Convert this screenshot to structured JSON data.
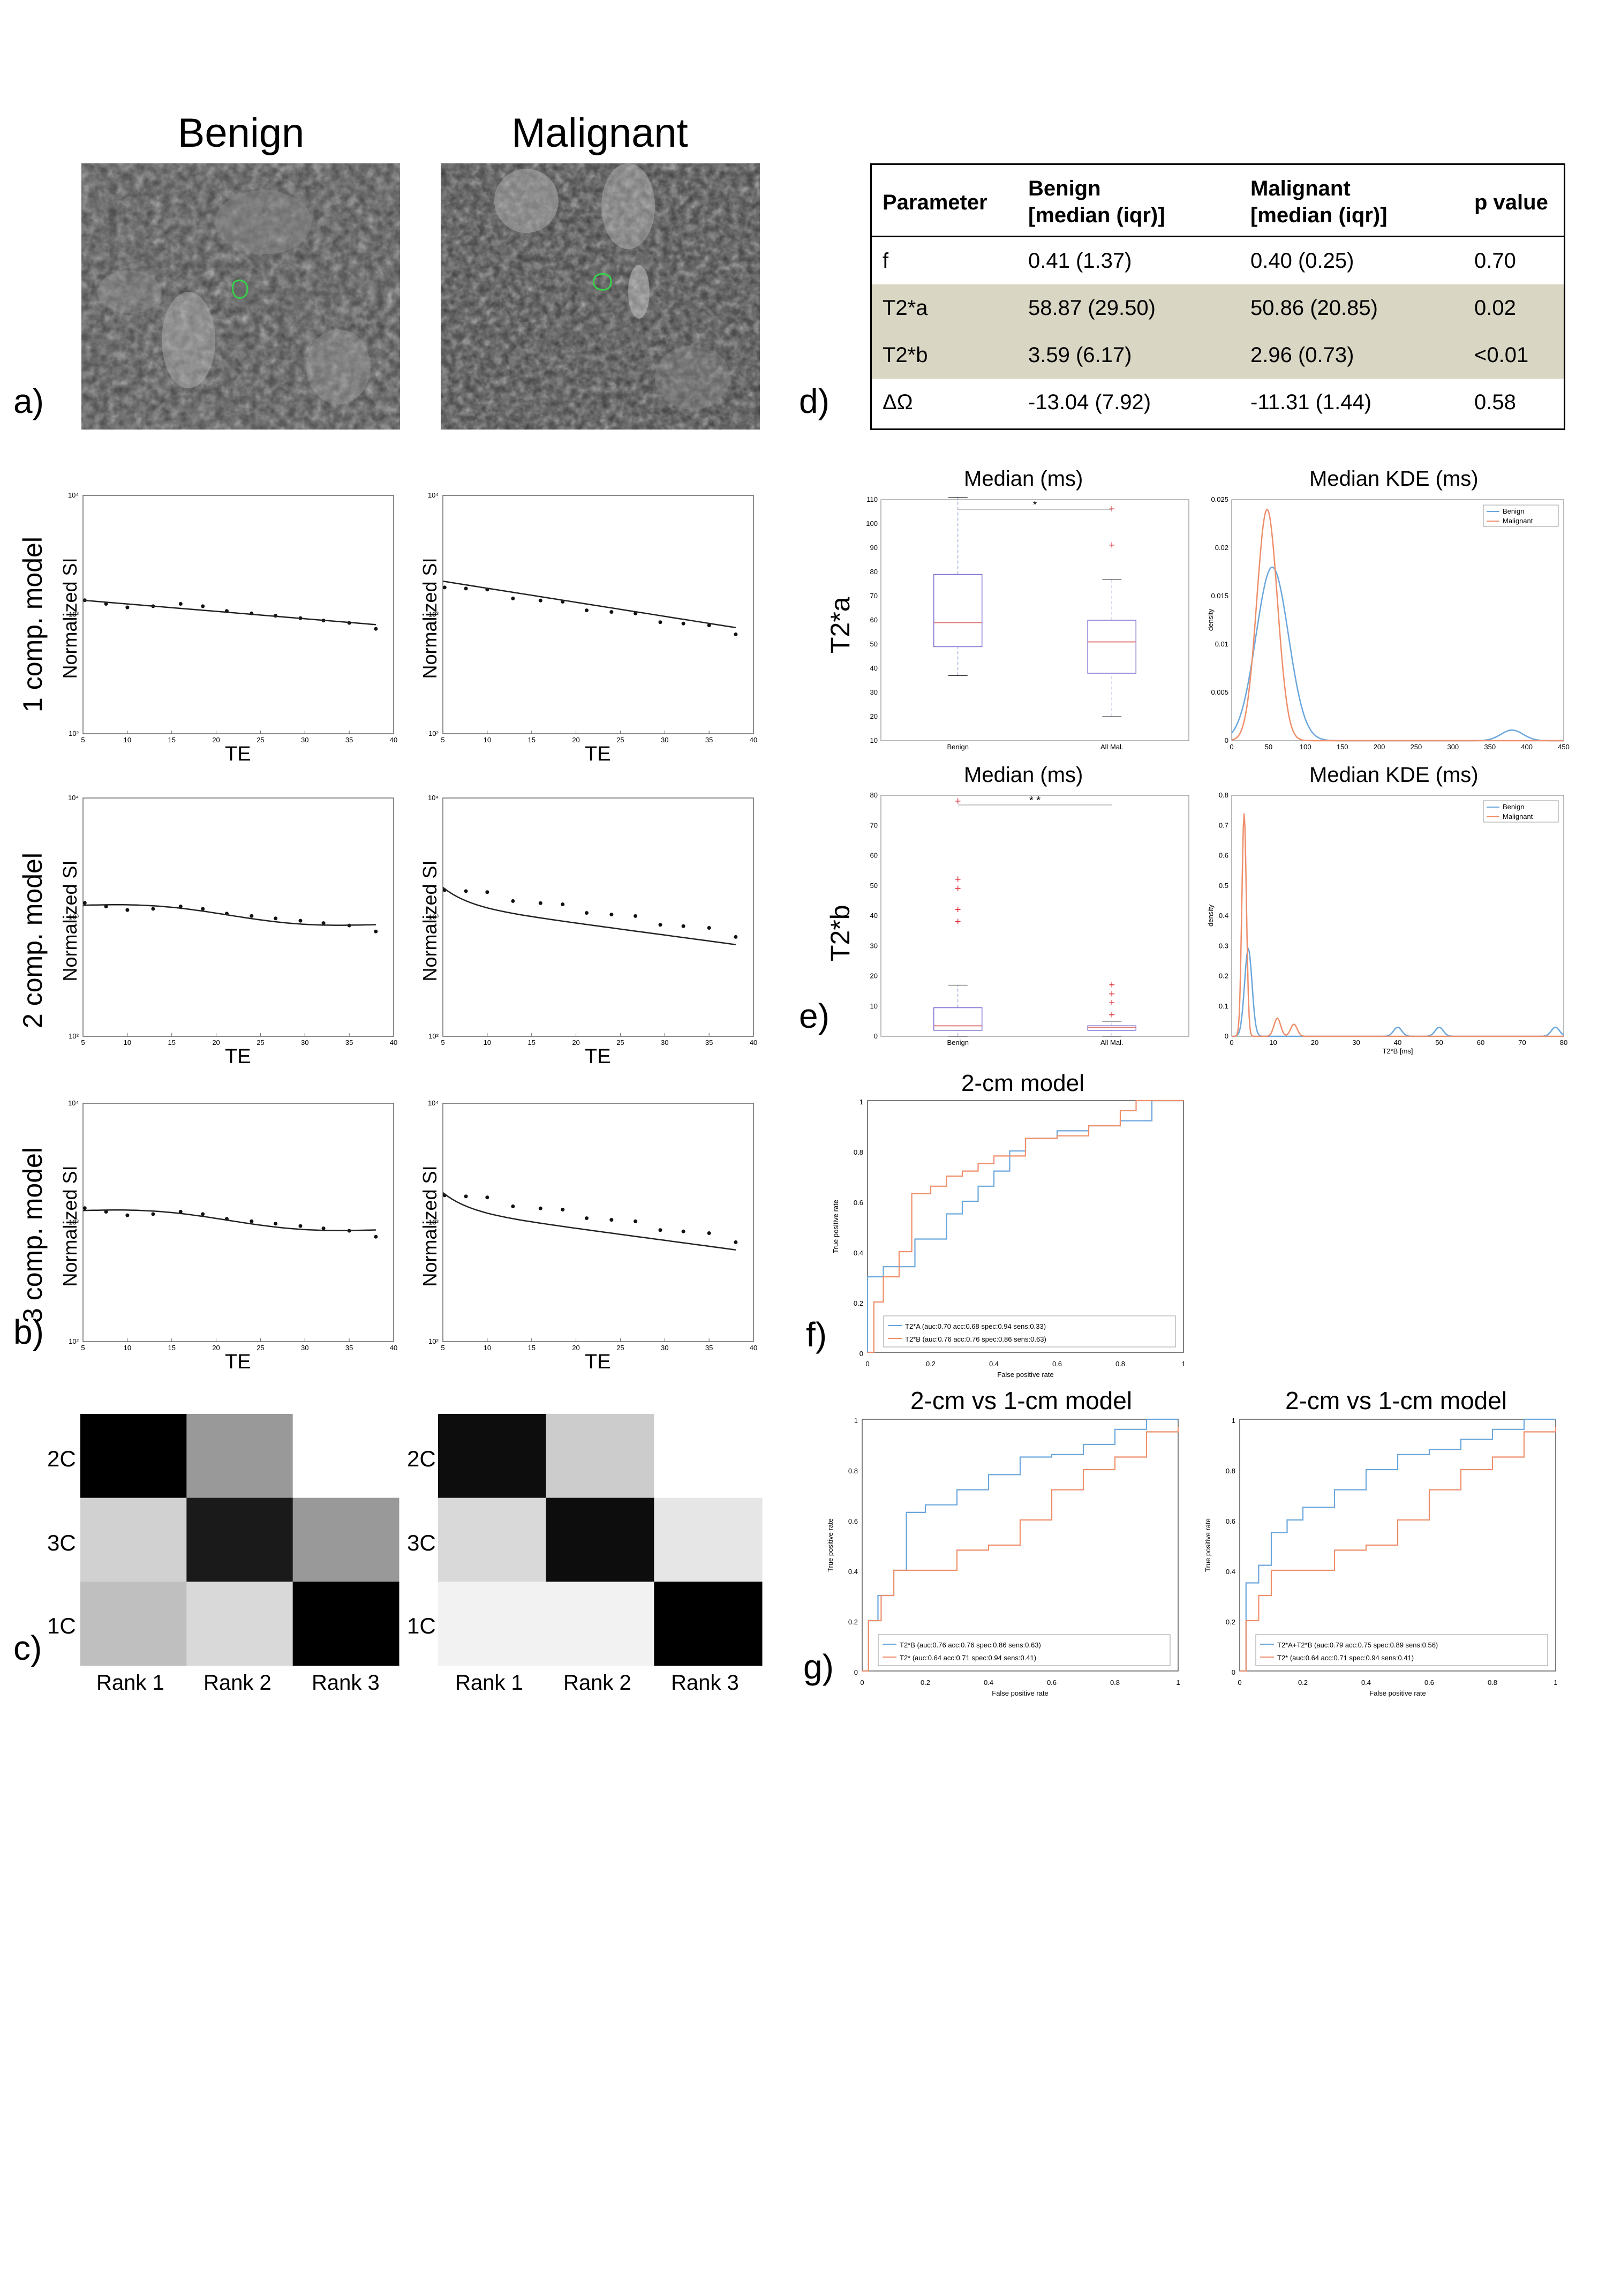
{
  "panel_a": {
    "letter": "a)",
    "headers": [
      "Benign",
      "Malignant"
    ]
  },
  "panel_b": {
    "letter": "b)",
    "row_labels": [
      "1 comp. model",
      "2 comp. model",
      "3 comp. model"
    ],
    "ylabel": "Normalized SI",
    "xlabel": "TE",
    "x_ticks": [
      "5",
      "10",
      "15",
      "20",
      "25",
      "30",
      "35",
      "40"
    ],
    "y_ticks": [
      "10²",
      "10³",
      "10⁴"
    ]
  },
  "panel_c": {
    "letter": "c)",
    "row_labels": [
      "2C",
      "3C",
      "1C"
    ],
    "col_labels": [
      "Rank 1",
      "Rank 2",
      "Rank 3"
    ],
    "left_grey": [
      [
        0.0,
        0.6,
        1.0
      ],
      [
        0.82,
        0.1,
        0.6
      ],
      [
        0.75,
        0.85,
        0.0
      ]
    ],
    "right_grey": [
      [
        0.05,
        0.8,
        1.0
      ],
      [
        0.85,
        0.05,
        0.9
      ],
      [
        0.95,
        0.95,
        0.0
      ]
    ]
  },
  "panel_d": {
    "letter": "d)",
    "columns": [
      "Parameter",
      "Benign\n[median (iqr)]",
      "Malignant\n[median (iqr)]",
      "p value"
    ],
    "col1": [
      "Parameter"
    ],
    "rows": [
      {
        "param": "f",
        "benign": "0.41 (1.37)",
        "malignant": "0.40 (0.25)",
        "p": "0.70",
        "highlight": false
      },
      {
        "param": "T2*a",
        "benign": "58.87 (29.50)",
        "malignant": "50.86 (20.85)",
        "p": "0.02",
        "highlight": true
      },
      {
        "param": "T2*b",
        "benign": "3.59 (6.17)",
        "malignant": "2.96 (0.73)",
        "p": "<0.01",
        "highlight": true
      },
      {
        "param": "ΔΩ",
        "benign": "-13.04 (7.92)",
        "malignant": "-11.31 (1.44)",
        "p": "0.58",
        "highlight": false
      }
    ],
    "header_benign_1": "Benign",
    "header_benign_2": "[median (iqr)]",
    "header_mal_1": "Malignant",
    "header_mal_2": "[median (iqr)]",
    "header_p": "p value",
    "header_param": "Parameter",
    "highlight_color": "#d9d6c4"
  },
  "panel_e": {
    "letter": "e)",
    "box_title": "Median (ms)",
    "kde_title": "Median KDE (ms)",
    "row_labels": [
      "T2*a",
      "T2*b"
    ],
    "box_categories": [
      "Benign",
      "All Mal."
    ],
    "legend": [
      "Benign",
      "Malignant"
    ],
    "kde_ylabel": "density",
    "kde_xlabel_b": "T2*B [ms]",
    "sig_a": "*",
    "sig_b": "* *"
  },
  "panel_f": {
    "letter": "f)",
    "title": "2-cm model",
    "xlabel": "False positive rate",
    "ylabel": "True positive rate",
    "legend": [
      "T2*A (auc:0.70 acc:0.68 spec:0.94 sens:0.33)",
      "T2*B (auc:0.76 acc:0.76 spec:0.86 sens:0.63)"
    ]
  },
  "panel_g": {
    "letter": "g)",
    "title_left": "2-cm vs 1-cm model",
    "title_right": "2-cm vs 1-cm model",
    "xlabel": "False positive rate",
    "ylabel": "True positive rate",
    "legend_left": [
      "T2*B (auc:0.76 acc:0.76 spec:0.86 sens:0.63)",
      "T2* (auc:0.64 acc:0.71 spec:0.94 sens:0.41)"
    ],
    "legend_right": [
      "T2*A+T2*B (auc:0.79 acc:0.75 spec:0.89 sens:0.56)",
      "T2* (auc:0.64 acc:0.71 spec:0.94 sens:0.41)"
    ]
  },
  "roc_ticks": [
    "0",
    "0.2",
    "0.4",
    "0.6",
    "0.8",
    "1"
  ],
  "colors": {
    "blue": "#6aa6dc",
    "orange": "#ef8e6a",
    "roi": "#36d24a"
  },
  "chart_data": [
    {
      "type": "table",
      "columns": [
        "Parameter",
        "Benign [median (iqr)]",
        "Malignant [median (iqr)]",
        "p value"
      ],
      "rows": [
        [
          "f",
          "0.41 (1.37)",
          "0.40 (0.25)",
          "0.70"
        ],
        [
          "T2*a",
          "58.87 (29.50)",
          "50.86 (20.85)",
          "0.02"
        ],
        [
          "T2*b",
          "3.59 (6.17)",
          "2.96 (0.73)",
          "<0.01"
        ],
        [
          "ΔΩ",
          "-13.04 (7.92)",
          "-11.31 (1.44)",
          "0.58"
        ]
      ]
    },
    {
      "type": "scatter",
      "title": "",
      "xlabel": "TE",
      "ylabel": "Normalized SI",
      "xlim": [
        5,
        40
      ],
      "ylim_log10": [
        2,
        4
      ],
      "series": [
        {
          "x": [
            5.2,
            7.6,
            10,
            12.9,
            16,
            18.5,
            21.2,
            24,
            26.7,
            29.5,
            32.1,
            35,
            38
          ],
          "y_log10": [
            3.12,
            3.09,
            3.06,
            3.07,
            3.09,
            3.07,
            3.03,
            3.01,
            2.99,
            2.97,
            2.95,
            2.93,
            2.88
          ]
        }
      ]
    },
    {
      "type": "line",
      "title": "2-cm model",
      "xlabel": "False positive rate",
      "ylabel": "True positive rate",
      "xlim": [
        0,
        1
      ],
      "ylim": [
        0,
        1
      ],
      "series": [
        {
          "name": "T2*A (auc:0.70 acc:0.68 spec:0.94 sens:0.33)",
          "x": [
            0,
            0,
            0.05,
            0.1,
            0.15,
            0.2,
            0.25,
            0.3,
            0.35,
            0.4,
            0.45,
            0.5,
            0.6,
            0.7,
            0.8,
            0.9,
            1
          ],
          "y": [
            0,
            0.3,
            0.34,
            0.34,
            0.45,
            0.45,
            0.55,
            0.6,
            0.66,
            0.72,
            0.8,
            0.85,
            0.88,
            0.9,
            0.92,
            1,
            1
          ]
        },
        {
          "name": "T2*B (auc:0.76 acc:0.76 spec:0.86 sens:0.63)",
          "x": [
            0,
            0.02,
            0.05,
            0.1,
            0.14,
            0.2,
            0.25,
            0.3,
            0.35,
            0.4,
            0.5,
            0.6,
            0.7,
            0.8,
            0.85,
            0.9,
            1
          ],
          "y": [
            0,
            0.2,
            0.3,
            0.4,
            0.63,
            0.66,
            0.7,
            0.72,
            0.75,
            0.78,
            0.85,
            0.86,
            0.9,
            0.96,
            1,
            1,
            1
          ]
        }
      ]
    },
    {
      "type": "line",
      "title": "2-cm vs 1-cm model",
      "xlabel": "False positive rate",
      "ylabel": "True positive rate",
      "xlim": [
        0,
        1
      ],
      "ylim": [
        0,
        1
      ],
      "series": [
        {
          "name": "T2*B (auc:0.76 acc:0.76 spec:0.86 sens:0.63)",
          "x": [
            0,
            0.02,
            0.05,
            0.1,
            0.14,
            0.2,
            0.3,
            0.4,
            0.5,
            0.6,
            0.7,
            0.8,
            0.9,
            1
          ],
          "y": [
            0,
            0.2,
            0.3,
            0.4,
            0.63,
            0.66,
            0.72,
            0.78,
            0.85,
            0.86,
            0.9,
            0.96,
            1,
            1
          ]
        },
        {
          "name": "T2* (auc:0.64 acc:0.71 spec:0.94 sens:0.41)",
          "x": [
            0,
            0.02,
            0.06,
            0.1,
            0.2,
            0.3,
            0.4,
            0.5,
            0.6,
            0.7,
            0.8,
            0.9,
            1
          ],
          "y": [
            0,
            0.2,
            0.3,
            0.4,
            0.4,
            0.48,
            0.5,
            0.6,
            0.72,
            0.8,
            0.85,
            0.95,
            0.97
          ]
        }
      ]
    },
    {
      "type": "line",
      "title": "2-cm vs 1-cm model",
      "xlabel": "False positive rate",
      "ylabel": "True positive rate",
      "xlim": [
        0,
        1
      ],
      "ylim": [
        0,
        1
      ],
      "series": [
        {
          "name": "T2*A+T2*B (auc:0.79 acc:0.75 spec:0.89 sens:0.56)",
          "x": [
            0,
            0.02,
            0.06,
            0.1,
            0.15,
            0.2,
            0.3,
            0.4,
            0.5,
            0.6,
            0.7,
            0.8,
            0.9,
            1
          ],
          "y": [
            0,
            0.35,
            0.42,
            0.55,
            0.6,
            0.65,
            0.72,
            0.8,
            0.86,
            0.88,
            0.92,
            0.96,
            1,
            1
          ]
        },
        {
          "name": "T2* (auc:0.64 acc:0.71 spec:0.94 sens:0.41)",
          "x": [
            0,
            0.02,
            0.06,
            0.1,
            0.2,
            0.3,
            0.4,
            0.5,
            0.6,
            0.7,
            0.8,
            0.9,
            1
          ],
          "y": [
            0,
            0.2,
            0.3,
            0.4,
            0.4,
            0.48,
            0.5,
            0.6,
            0.72,
            0.8,
            0.85,
            0.95,
            0.97
          ]
        }
      ]
    }
  ]
}
